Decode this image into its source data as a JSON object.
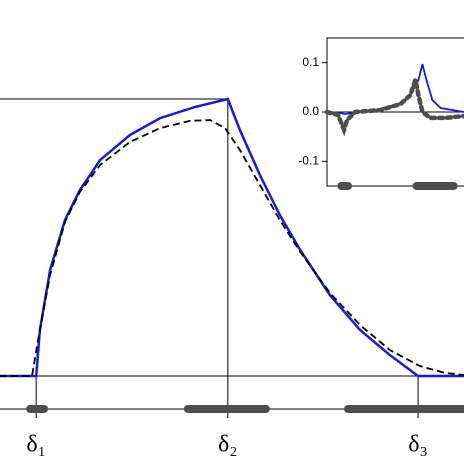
{
  "chart_data": [
    {
      "type": "line",
      "xlim": [
        0,
        100
      ],
      "ylim": [
        0,
        1
      ],
      "delta_labels": [
        "δ₁",
        "δ₂",
        "δ₃"
      ],
      "deltas": [
        7.8,
        49.1,
        90.1
      ],
      "intervals": [
        [
          6.5,
          9.5
        ],
        [
          40.5,
          57.3
        ],
        [
          75,
          100
        ]
      ],
      "interval_color": "#4d4d4d",
      "series": [
        {
          "color": "#1a1adc",
          "style": "solid",
          "x": [
            0,
            7.8,
            8.6,
            10.8,
            14,
            17.2,
            21.6,
            28,
            34.5,
            42,
            49.1,
            51.7,
            56,
            60.3,
            64.7,
            71.1,
            77.6,
            84,
            90.1,
            100
          ],
          "values": [
            0,
            0,
            0.166,
            0.383,
            0.563,
            0.671,
            0.78,
            0.87,
            0.931,
            0.971,
            1,
            0.888,
            0.726,
            0.581,
            0.455,
            0.292,
            0.166,
            0.076,
            0,
            0
          ]
        },
        {
          "color": "#000000",
          "style": "dashed",
          "x": [
            0,
            6.9,
            8.2,
            10.8,
            14,
            17.2,
            21.6,
            28,
            34.5,
            40.9,
            45.3,
            48.5,
            51.7,
            56,
            60.3,
            64.7,
            71.1,
            77.6,
            84,
            90.5,
            95.9,
            100
          ],
          "values": [
            0,
            0,
            0.13,
            0.365,
            0.556,
            0.664,
            0.762,
            0.845,
            0.895,
            0.921,
            0.924,
            0.895,
            0.816,
            0.69,
            0.563,
            0.448,
            0.3,
            0.184,
            0.094,
            0.036,
            0.011,
            0.004
          ]
        }
      ]
    },
    {
      "type": "line",
      "xlim": [
        0,
        62
      ],
      "ylim": [
        -0.15,
        0.15
      ],
      "yticks": [
        {
          "value": 0.1,
          "label": "0.1"
        },
        {
          "value": 0,
          "label": "0.0"
        },
        {
          "value": -0.1,
          "label": "-0.1"
        }
      ],
      "intervals": [
        [
          6.5,
          9.5
        ],
        [
          40.5,
          57.3
        ]
      ],
      "interval_color": "#4d4d4d",
      "series": [
        {
          "color": "#1a1adc",
          "style": "solid",
          "x": [
            0,
            5.9,
            8.2,
            15,
            24.1,
            33.2,
            37.7,
            41.4,
            43.2,
            45,
            47.7,
            51.4,
            62
          ],
          "values": [
            0,
            -0.002,
            -0.004,
            0,
            0.006,
            0.018,
            0.034,
            0.065,
            0.097,
            0.065,
            0.024,
            0.008,
            0
          ]
        },
        {
          "color": "#4d4d4d",
          "style": "dotted",
          "x": [
            0,
            5,
            7.7,
            9.1,
            12.7,
            24.1,
            33.2,
            37.7,
            40,
            41.4,
            43.2,
            46.8,
            53.6,
            62
          ],
          "values": [
            0,
            -0.006,
            -0.036,
            -0.016,
            0,
            0.004,
            0.016,
            0.034,
            0.065,
            0.034,
            0,
            -0.012,
            -0.012,
            -0.008
          ]
        }
      ]
    }
  ]
}
